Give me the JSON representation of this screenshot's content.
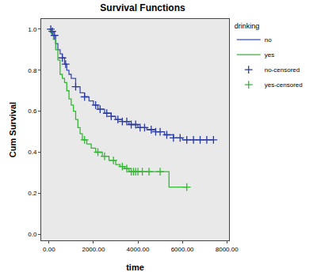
{
  "chart_data": {
    "type": "line",
    "title": "Survival Functions",
    "x_label": "time",
    "y_label": "Cum Survival",
    "legend_title": "drinking",
    "legend": "upper right",
    "grid": false,
    "xlim": [
      -350,
      8100
    ],
    "ylim": [
      -0.03,
      1.05
    ],
    "xticks": [
      {
        "value": 0,
        "label": "0.00"
      },
      {
        "value": 2000,
        "label": "2000.00"
      },
      {
        "value": 4000,
        "label": "4000.00"
      },
      {
        "value": 6000,
        "label": "6000.00"
      },
      {
        "value": 8000,
        "label": "8000.00"
      }
    ],
    "yticks": [
      {
        "value": 0,
        "label": "0.0"
      },
      {
        "value": 0.2,
        "label": "0.2"
      },
      {
        "value": 0.4,
        "label": "0.4"
      },
      {
        "value": 0.6,
        "label": "0.6"
      },
      {
        "value": 0.8,
        "label": "0.8"
      },
      {
        "value": 1,
        "label": "1.0"
      }
    ],
    "series": [
      {
        "name": "no",
        "type": "line",
        "line_style": "step",
        "color": "#3b4cc0",
        "x": [
          0,
          100,
          200,
          300,
          400,
          500,
          600,
          700,
          800,
          900,
          1000,
          1200,
          1400,
          1600,
          1800,
          2000,
          2200,
          2500,
          2800,
          3000,
          3300,
          3600,
          4000,
          4400,
          4800,
          5200,
          5600,
          6000,
          6400,
          7400
        ],
        "values": [
          1,
          0.99,
          0.97,
          0.93,
          0.9,
          0.88,
          0.86,
          0.83,
          0.8,
          0.78,
          0.76,
          0.72,
          0.69,
          0.67,
          0.65,
          0.63,
          0.61,
          0.59,
          0.575,
          0.56,
          0.55,
          0.535,
          0.52,
          0.51,
          0.5,
          0.485,
          0.47,
          0.46,
          0.46,
          0.46
        ]
      },
      {
        "name": "yes",
        "type": "line",
        "line_style": "step",
        "color": "#33b833",
        "x": [
          0,
          100,
          200,
          300,
          400,
          500,
          600,
          700,
          800,
          900,
          1000,
          1100,
          1200,
          1300,
          1400,
          1500,
          1700,
          1900,
          2100,
          2400,
          2700,
          3000,
          3200,
          3400,
          3600,
          5400,
          6200
        ],
        "values": [
          1,
          0.98,
          0.95,
          0.9,
          0.85,
          0.78,
          0.76,
          0.74,
          0.7,
          0.66,
          0.63,
          0.6,
          0.56,
          0.52,
          0.49,
          0.46,
          0.44,
          0.42,
          0.4,
          0.38,
          0.36,
          0.34,
          0.33,
          0.32,
          0.305,
          0.23,
          0.23
        ]
      },
      {
        "name": "no-censored",
        "type": "scatter",
        "marker": "cross",
        "color": "#2a3a9e",
        "x": [
          80,
          150,
          250,
          600,
          750,
          1200,
          1600,
          2100,
          2300,
          2600,
          2800,
          3100,
          3300,
          3500,
          3700,
          3900,
          4100,
          4300,
          4600,
          4800,
          5000,
          5300,
          5600,
          5900,
          6200,
          6500,
          6800,
          7100,
          7400
        ],
        "values": [
          1,
          0.99,
          0.97,
          0.86,
          0.83,
          0.72,
          0.67,
          0.63,
          0.61,
          0.59,
          0.575,
          0.56,
          0.55,
          0.55,
          0.535,
          0.535,
          0.52,
          0.52,
          0.51,
          0.5,
          0.5,
          0.485,
          0.47,
          0.47,
          0.46,
          0.46,
          0.46,
          0.46,
          0.46
        ]
      },
      {
        "name": "yes-censored",
        "type": "scatter",
        "marker": "cross",
        "color": "#33b833",
        "x": [
          1600,
          2200,
          2500,
          2900,
          3300,
          3500,
          3700,
          3800,
          3900,
          4000,
          4200,
          4500,
          5000,
          6200
        ],
        "values": [
          0.46,
          0.4,
          0.38,
          0.36,
          0.33,
          0.32,
          0.305,
          0.305,
          0.305,
          0.305,
          0.305,
          0.305,
          0.305,
          0.23
        ]
      }
    ]
  }
}
